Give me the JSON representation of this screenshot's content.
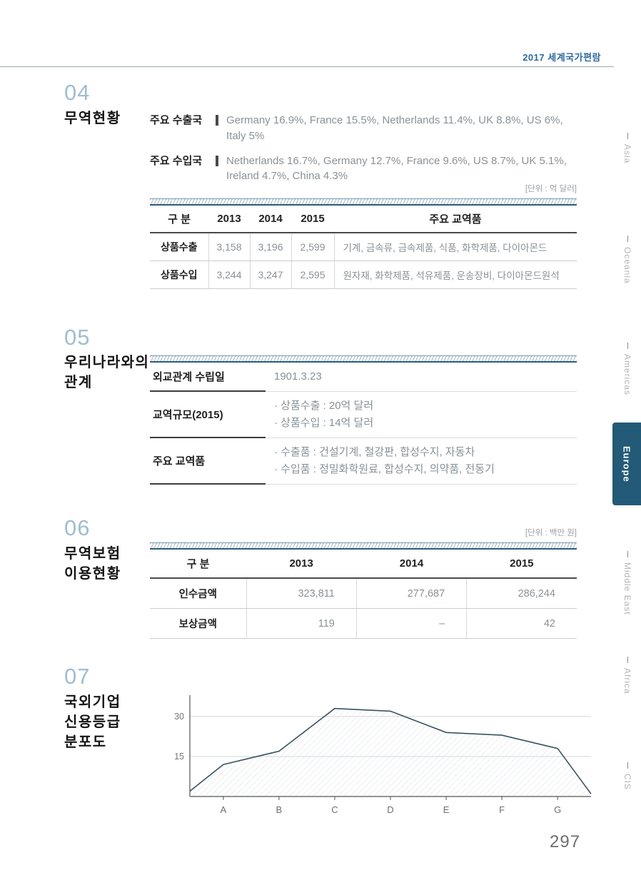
{
  "page": {
    "header": "2017 세계국가편람",
    "page_number": "297"
  },
  "sidebar": {
    "items": [
      {
        "label": "Asia",
        "active": false
      },
      {
        "label": "Oceania",
        "active": false
      },
      {
        "label": "Americas",
        "active": false
      },
      {
        "label": "Europe",
        "active": true
      },
      {
        "label": "Middle East",
        "active": false
      },
      {
        "label": "Africa",
        "active": false
      },
      {
        "label": "CIS",
        "active": false
      }
    ]
  },
  "section04": {
    "number": "04",
    "title": "무역현황",
    "exports_label": "주요 수출국",
    "exports_value": "Germany 16.9%, France 15.5%, Netherlands 11.4%, UK 8.8%, US 6%, Italy 5%",
    "imports_label": "주요 수입국",
    "imports_value": "Netherlands 16.7%, Germany 12.7%, France 9.6%, US 8.7%, UK 5.1%, Ireland 4.7%, China 4.3%",
    "unit": "[단위 : 억 달러]",
    "table": {
      "headers": [
        "구 분",
        "2013",
        "2014",
        "2015",
        "주요 교역품"
      ],
      "rows": [
        {
          "label": "상품수출",
          "v2013": "3,158",
          "v2014": "3,196",
          "v2015": "2,599",
          "items": "기계, 금속류, 금속제품, 식품, 화학제품, 다이아몬드"
        },
        {
          "label": "상품수입",
          "v2013": "3,244",
          "v2014": "3,247",
          "v2015": "2,595",
          "items": "원자재, 화학제품, 석유제품, 운송장비, 다이아몬드원석"
        }
      ]
    }
  },
  "section05": {
    "number": "05",
    "title_line1": "우리나라와의",
    "title_line2": "관계",
    "rows": [
      {
        "label": "외교관계 수립일",
        "lines": [
          "1901.3.23"
        ]
      },
      {
        "label": "교역규모(2015)",
        "lines": [
          "· 상품수출 : 20억 달러",
          "· 상품수입 : 14억 달러"
        ]
      },
      {
        "label": "주요 교역품",
        "lines": [
          "· 수출품 : 건설기계, 철강판, 합성수지, 자동차",
          "· 수입품 : 정밀화학원료, 합성수지, 의약품, 전동기"
        ]
      }
    ]
  },
  "section06": {
    "number": "06",
    "title_line1": "무역보험",
    "title_line2": "이용현황",
    "unit": "[단위 : 백만 원]",
    "table": {
      "headers": [
        "구 분",
        "2013",
        "2014",
        "2015"
      ],
      "rows": [
        {
          "label": "인수금액",
          "values": [
            "323,811",
            "277,687",
            "286,244"
          ]
        },
        {
          "label": "보상금액",
          "values": [
            "119",
            "–",
            "42"
          ]
        }
      ]
    }
  },
  "section07": {
    "number": "07",
    "title_line1": "국외기업",
    "title_line2": "신용등급",
    "title_line3": "분포도"
  },
  "chart_data": {
    "type": "area",
    "title": "국외기업 신용등급 분포도",
    "categories": [
      "A",
      "B",
      "C",
      "D",
      "E",
      "F",
      "G"
    ],
    "values": [
      12,
      17,
      33,
      32,
      24,
      23,
      18
    ],
    "edge_start": 2,
    "edge_end": 1,
    "yticks": [
      15,
      30
    ],
    "ylim": [
      0,
      38
    ],
    "grid": true,
    "legend": "none",
    "line_color": "#3a5360",
    "fill": "diagonal-hatch"
  }
}
